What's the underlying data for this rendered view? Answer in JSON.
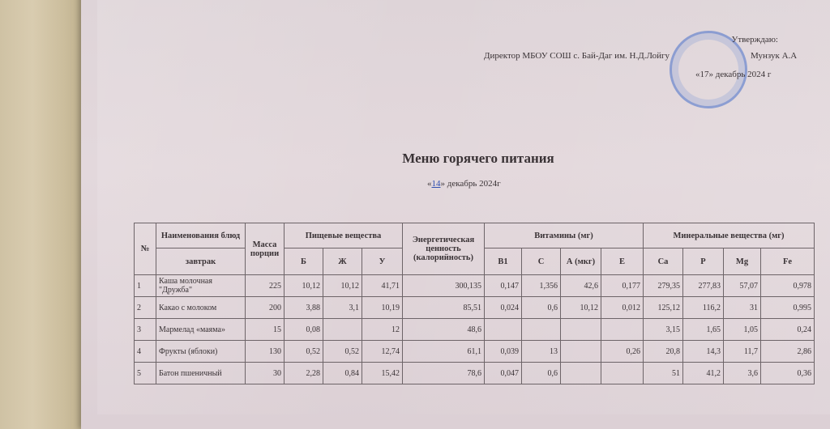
{
  "approval": {
    "approve": "Утверждаю:",
    "director": "Директор МБОУ СОШ с. Бай-Даг им. Н.Д.Лойгу",
    "name": "Мунзук А.А",
    "date_prefix": "«17»",
    "date_rest": "декабрь  2024 г"
  },
  "title": "Меню горячего питания",
  "date": {
    "day": "14",
    "open": "«",
    "close": "»",
    "rest": " декабрь 2024г"
  },
  "stamp_color": "#4a6fc8",
  "table": {
    "headers": {
      "num": "№",
      "name": "Наименования блюд",
      "meal": "завтрак",
      "mass": "Масса порции",
      "nutrients": "Пищевые вещества",
      "b": "Б",
      "zh": "Ж",
      "u": "У",
      "energy": "Энергетическая ценность (калорийность)",
      "vitamins": "Витамины (мг)",
      "b1": "B1",
      "c": "C",
      "a": "А (мкг)",
      "e": "E",
      "minerals": "Минеральные вещества (мг)",
      "ca": "Ca",
      "p": "P",
      "mg": "Mg",
      "fe": "Fe"
    },
    "rows": [
      [
        "1",
        "Каша молочная \"Дружба\"",
        "225",
        "10,12",
        "10,12",
        "41,71",
        "300,135",
        "0,147",
        "1,356",
        "42,6",
        "0,177",
        "279,35",
        "277,83",
        "57,07",
        "0,978"
      ],
      [
        "2",
        "Какао с молоком",
        "200",
        "3,88",
        "3,1",
        "10,19",
        "85,51",
        "0,024",
        "0,6",
        "10,12",
        "0,012",
        "125,12",
        "116,2",
        "31",
        "0,995"
      ],
      [
        "3",
        "Мармелад «маяма»",
        "15",
        "0,08",
        "",
        "12",
        "48,6",
        "",
        "",
        "",
        "",
        "3,15",
        "1,65",
        "1,05",
        "0,24"
      ],
      [
        "4",
        "Фрукты (яблоки)",
        "130",
        "0,52",
        "0,52",
        "12,74",
        "61,1",
        "0,039",
        "13",
        "",
        "0,26",
        "20,8",
        "14,3",
        "11,7",
        "2,86"
      ],
      [
        "5",
        "Батон пшеничный",
        "30",
        "2,28",
        "0,84",
        "15,42",
        "78,6",
        "0,047",
        "0,6",
        "",
        "",
        "51",
        "41,2",
        "3,6",
        "0,36"
      ]
    ]
  }
}
